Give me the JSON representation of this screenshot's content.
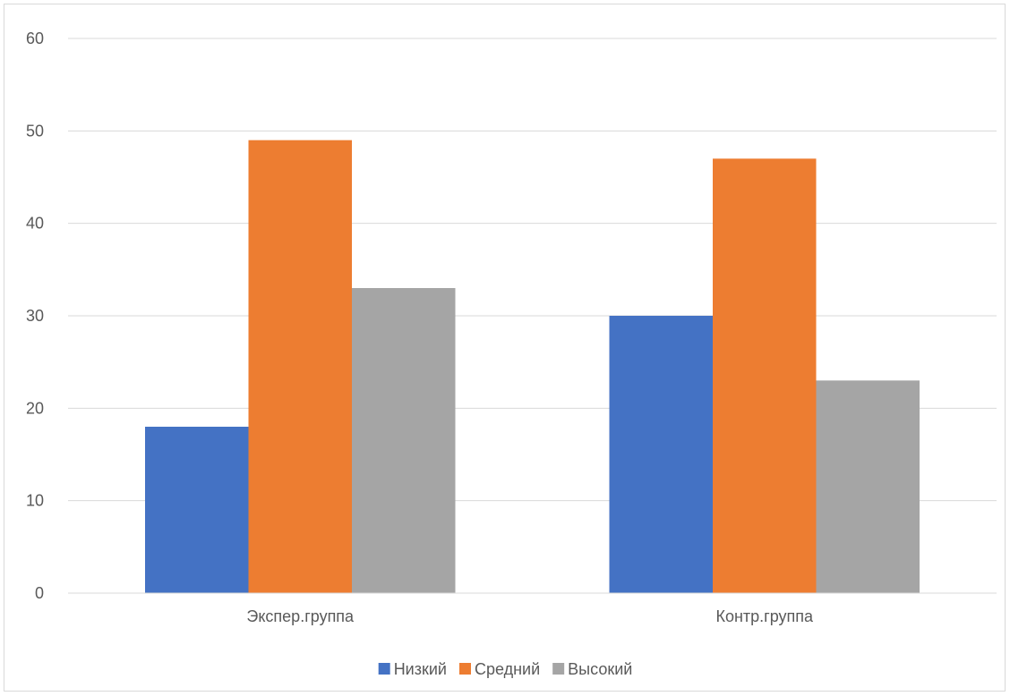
{
  "chart_data": {
    "type": "bar",
    "title": "",
    "xlabel": "",
    "ylabel": "",
    "categories": [
      "Экспер.группа",
      "Контр.группа"
    ],
    "series": [
      {
        "name": "Низкий",
        "values": [
          18,
          30
        ],
        "color": "#4472C4"
      },
      {
        "name": "Средний",
        "values": [
          49,
          47
        ],
        "color": "#ED7D31"
      },
      {
        "name": "Высокий",
        "values": [
          33,
          23
        ],
        "color": "#A5A5A5"
      }
    ],
    "ylim": [
      0,
      60
    ],
    "yticks": [
      0,
      10,
      20,
      30,
      40,
      50,
      60
    ],
    "grid": true,
    "legend": "bottom",
    "gridline_color": "#d9d9d9",
    "axis_color": "#d9d9d9"
  }
}
